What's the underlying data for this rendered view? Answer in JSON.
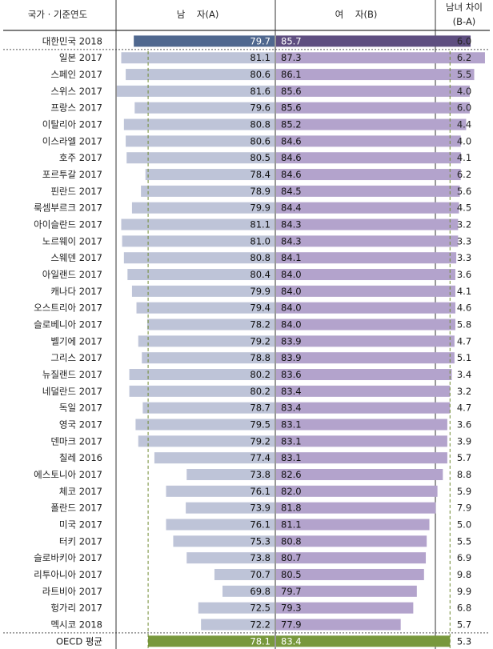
{
  "headers": {
    "country": "국가 · 기준연도",
    "male": "남    자(A)",
    "female": "여    자(B)",
    "diff_line1": "남녀 차이",
    "diff_line2": "(B-A)"
  },
  "colors": {
    "male_bar": "#bec4d8",
    "female_bar": "#b3a3cc",
    "korea_male": "#50688f",
    "korea_female": "#5e4e80",
    "oecd_bar": "#78983c",
    "guide_line": "#6f8a30"
  },
  "chart_data": {
    "type": "bar",
    "title": "",
    "categories": [
      "대한민국 2018",
      "일본 2017",
      "스페인 2017",
      "스위스 2017",
      "프랑스 2017",
      "이탈리아 2017",
      "이스라엘 2017",
      "호주 2017",
      "포르투갈 2017",
      "핀란드 2017",
      "룩셈부르크 2017",
      "아이슬란드 2017",
      "노르웨이 2017",
      "스웨덴 2017",
      "아일랜드 2017",
      "캐나다 2017",
      "오스트리아 2017",
      "슬로베니아 2017",
      "벨기에 2017",
      "그리스 2017",
      "뉴질랜드 2017",
      "네덜란드 2017",
      "독일 2017",
      "영국 2017",
      "덴마크 2017",
      "칠레 2016",
      "에스토니아 2017",
      "체코 2017",
      "폴란드 2017",
      "미국 2017",
      "터키 2017",
      "슬로바키아 2017",
      "리투아니아 2017",
      "라트비아 2017",
      "헝가리 2017",
      "멕시코 2018",
      "OECD 평균"
    ],
    "series": [
      {
        "name": "남    자(A)",
        "values": [
          79.7,
          81.1,
          80.6,
          81.6,
          79.6,
          80.8,
          80.6,
          80.5,
          78.4,
          78.9,
          79.9,
          81.1,
          81.0,
          80.8,
          80.4,
          79.9,
          79.4,
          78.2,
          79.2,
          78.8,
          80.2,
          80.2,
          78.7,
          79.5,
          79.2,
          77.4,
          73.8,
          76.1,
          73.9,
          76.1,
          75.3,
          73.8,
          70.7,
          69.8,
          72.5,
          72.2,
          78.1
        ]
      },
      {
        "name": "여    자(B)",
        "values": [
          85.7,
          87.3,
          86.1,
          85.6,
          85.6,
          85.2,
          84.6,
          84.6,
          84.6,
          84.5,
          84.4,
          84.3,
          84.3,
          84.1,
          84.0,
          84.0,
          84.0,
          84.0,
          83.9,
          83.9,
          83.6,
          83.4,
          83.4,
          83.1,
          83.1,
          83.1,
          82.6,
          82.0,
          81.8,
          81.1,
          80.8,
          80.7,
          80.5,
          79.7,
          79.3,
          77.9,
          83.4
        ]
      }
    ],
    "difference": [
      "6.0",
      "6.2",
      "5.5",
      "4.0",
      "6.0",
      "4.4",
      "4.0",
      "4.1",
      "6.2",
      "5.6",
      "4.5",
      "3.2",
      "3.3",
      "3.3",
      "3.6",
      "4.1",
      "4.6",
      "5.8",
      "4.7",
      "5.1",
      "3.4",
      "3.2",
      "4.7",
      "3.6",
      "3.9",
      "5.7",
      "8.8",
      "5.9",
      "7.9",
      "5.0",
      "5.5",
      "6.9",
      "9.8",
      "9.9",
      "6.8",
      "5.7",
      "5.3"
    ],
    "oecd_reference": {
      "male": 78.1,
      "female": 83.4
    }
  }
}
